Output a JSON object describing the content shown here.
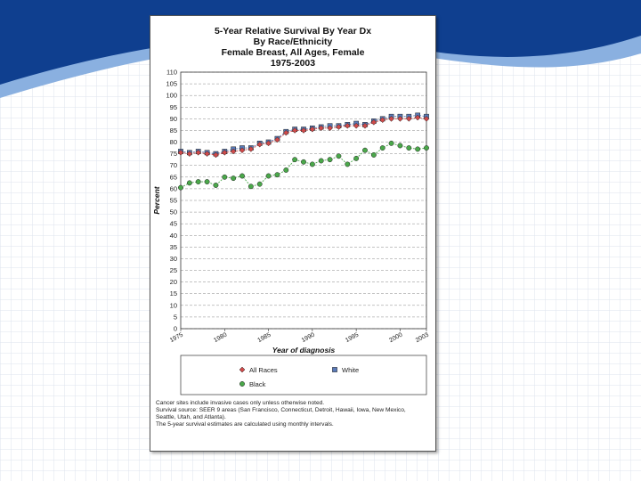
{
  "colors": {
    "background_blue": "#0f3f8f",
    "light_blue": "#8ab0e0",
    "grid_line": "#c8d0e4",
    "all_races": "#d04a4a",
    "white": "#5a7ab8",
    "black": "#4aa84a"
  },
  "chart_data": {
    "type": "line",
    "title_lines": [
      "5-Year Relative Survival By Year Dx",
      "By Race/Ethnicity",
      "Female Breast, All Ages, Female",
      "1975-2003"
    ],
    "xlabel": "Year of diagnosis",
    "ylabel": "Percent",
    "ylim": [
      0,
      110
    ],
    "yticks": [
      0,
      5,
      10,
      15,
      20,
      25,
      30,
      35,
      40,
      45,
      50,
      55,
      60,
      65,
      70,
      75,
      80,
      85,
      90,
      95,
      100,
      105,
      110
    ],
    "xlim": [
      1975,
      2003
    ],
    "xticks": [
      "1975",
      "1980",
      "1985",
      "1990",
      "1995",
      "2000",
      "2003"
    ],
    "x": [
      1975,
      1976,
      1977,
      1978,
      1979,
      1980,
      1981,
      1982,
      1983,
      1984,
      1985,
      1986,
      1987,
      1988,
      1989,
      1990,
      1991,
      1992,
      1993,
      1994,
      1995,
      1996,
      1997,
      1998,
      1999,
      2000,
      2001,
      2002,
      2003
    ],
    "series": [
      {
        "name": "All Races",
        "marker": "diamond",
        "values": [
          75.5,
          75,
          75.5,
          75,
          74.5,
          75.5,
          76,
          76.5,
          77,
          79,
          79.5,
          81,
          84,
          85,
          85,
          85.5,
          86,
          86,
          86.5,
          87,
          87,
          87,
          88.5,
          89.5,
          90,
          90,
          90,
          90.5,
          90
        ]
      },
      {
        "name": "White",
        "marker": "square",
        "values": [
          76,
          75.5,
          76,
          75.5,
          75,
          76,
          77,
          77.5,
          77.5,
          79.5,
          80,
          81.5,
          84.5,
          85.5,
          85.5,
          86,
          86.5,
          87,
          87,
          87.5,
          88,
          87.5,
          89,
          90,
          91,
          91,
          91,
          91.5,
          91
        ]
      },
      {
        "name": "Black",
        "marker": "circle",
        "values": [
          60.5,
          62.5,
          63,
          63,
          61.5,
          65,
          64.5,
          65.5,
          61,
          62,
          65.5,
          66,
          68,
          72.5,
          71.5,
          70.5,
          72,
          72.5,
          74,
          70.5,
          73,
          76.5,
          74.5,
          77.5,
          79.5,
          78.5,
          77.5,
          77,
          77.5
        ]
      }
    ],
    "legend": {
      "position": "bottom"
    }
  },
  "notes": [
    "Cancer sites include invasive cases only unless otherwise noted.",
    "Survival source: SEER 9 areas (San Francisco, Connecticut, Detroit, Hawaii, Iowa, New Mexico,",
    "Seattle, Utah, and Atlanta).",
    "The 5-year survival estimates are calculated using monthly intervals."
  ]
}
